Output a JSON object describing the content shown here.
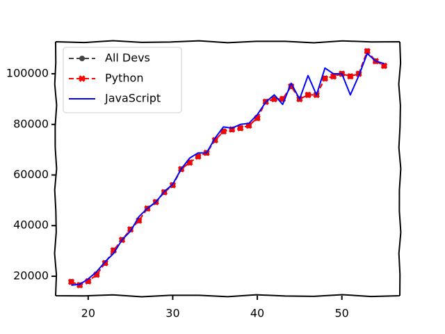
{
  "chart_data": {
    "type": "line",
    "x": [
      18,
      19,
      20,
      21,
      22,
      23,
      24,
      25,
      26,
      27,
      28,
      29,
      30,
      31,
      32,
      33,
      34,
      35,
      36,
      37,
      38,
      39,
      40,
      41,
      42,
      43,
      44,
      45,
      46,
      47,
      48,
      49,
      50,
      51,
      52,
      53,
      54,
      55
    ],
    "series": [
      {
        "name": "All Devs",
        "color": "#444444",
        "linestyle": "dashed",
        "marker": "circle",
        "values": [
          17784,
          16500,
          18012,
          20628,
          25206,
          30252,
          34368,
          38496,
          42000,
          46752,
          49320,
          53200,
          56000,
          62316,
          64928,
          67317,
          68748,
          73752,
          77232,
          78000,
          78508,
          79536,
          82488,
          88935,
          90000,
          90056,
          95000,
          90000,
          91633,
          91660,
          98150,
          98964,
          100000,
          98988,
          100000,
          108923,
          105000,
          103117
        ]
      },
      {
        "name": "Python",
        "color": "#ff0000",
        "linestyle": "dashed",
        "marker": "x",
        "values": [
          17784,
          16500,
          18012,
          20628,
          25206,
          30252,
          34368,
          38496,
          42000,
          46752,
          49320,
          53200,
          56000,
          62316,
          64928,
          67317,
          68748,
          73752,
          77232,
          78000,
          78508,
          79536,
          82488,
          88935,
          90000,
          90056,
          95000,
          90000,
          91633,
          91660,
          98150,
          98964,
          100000,
          98988,
          100000,
          108923,
          105000,
          103117
        ]
      },
      {
        "name": "JavaScript",
        "color": "#0000ff",
        "linestyle": "solid",
        "marker": "none",
        "values": [
          16446,
          16791,
          18942,
          21780,
          25704,
          29000,
          34372,
          37810,
          43515,
          46823,
          49293,
          53437,
          56373,
          62375,
          66674,
          68745,
          68746,
          74583,
          79000,
          78508,
          79996,
          80403,
          83820,
          88833,
          91660,
          87892,
          96243,
          90000,
          99313,
          91660,
          102264,
          100000,
          100000,
          91660,
          99240,
          108000,
          105000,
          104000
        ]
      }
    ],
    "xlim": [
      16.15,
      56.85
    ],
    "xticks": [
      20,
      30,
      40,
      50
    ],
    "ylim": [
      12300,
      112650
    ],
    "yticks": [
      20000,
      40000,
      60000,
      80000,
      100000
    ],
    "legend": "upper left"
  }
}
